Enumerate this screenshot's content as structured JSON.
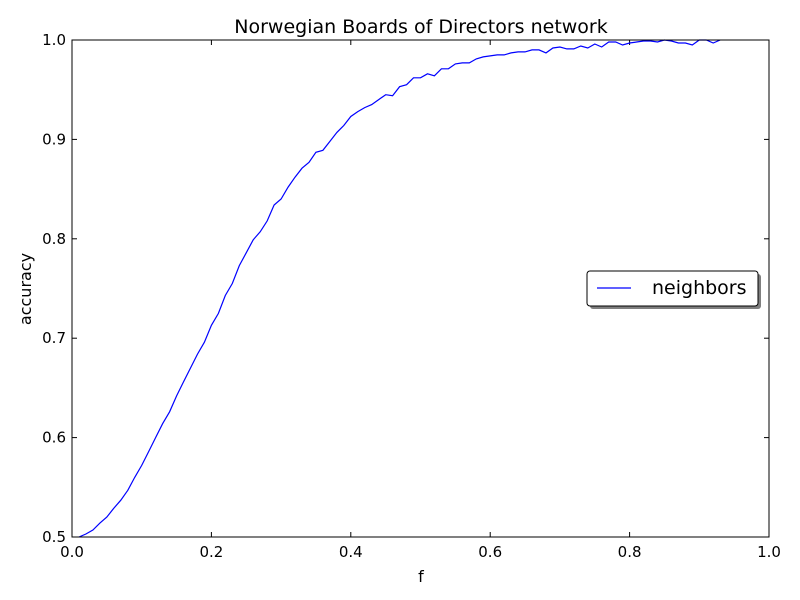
{
  "chart_data": {
    "type": "line",
    "title": "Norwegian Boards of Directors network",
    "xlabel": "f",
    "ylabel": "accuracy",
    "xlim": [
      0.0,
      1.0
    ],
    "ylim": [
      0.5,
      1.0
    ],
    "xticks": [
      "0.0",
      "0.2",
      "0.4",
      "0.6",
      "0.8",
      "1.0"
    ],
    "yticks": [
      "0.5",
      "0.6",
      "0.7",
      "0.8",
      "0.9",
      "1.0"
    ],
    "grid": false,
    "legend_position": "center-right",
    "series": [
      {
        "name": "neighbors",
        "color": "#0000ff",
        "x": [
          0.01,
          0.02,
          0.03,
          0.04,
          0.05,
          0.06,
          0.07,
          0.08,
          0.09,
          0.1,
          0.11,
          0.12,
          0.13,
          0.14,
          0.15,
          0.16,
          0.17,
          0.18,
          0.19,
          0.2,
          0.21,
          0.22,
          0.23,
          0.24,
          0.25,
          0.26,
          0.27,
          0.28,
          0.29,
          0.3,
          0.31,
          0.32,
          0.33,
          0.34,
          0.35,
          0.36,
          0.37,
          0.38,
          0.39,
          0.4,
          0.41,
          0.42,
          0.43,
          0.44,
          0.45,
          0.46,
          0.47,
          0.48,
          0.49,
          0.5,
          0.51,
          0.52,
          0.53,
          0.54,
          0.55,
          0.56,
          0.57,
          0.58,
          0.59,
          0.6,
          0.61,
          0.62,
          0.63,
          0.64,
          0.65,
          0.66,
          0.67,
          0.68,
          0.69,
          0.7,
          0.71,
          0.72,
          0.73,
          0.74,
          0.75,
          0.76,
          0.77,
          0.78,
          0.79,
          0.8,
          0.81,
          0.82,
          0.83,
          0.84,
          0.85,
          0.86,
          0.87,
          0.88,
          0.89,
          0.9,
          0.91,
          0.92,
          0.93
        ],
        "values": [
          0.5,
          0.503,
          0.507,
          0.514,
          0.52,
          0.529,
          0.537,
          0.547,
          0.56,
          0.572,
          0.586,
          0.6,
          0.614,
          0.626,
          0.642,
          0.656,
          0.67,
          0.684,
          0.696,
          0.713,
          0.725,
          0.743,
          0.755,
          0.773,
          0.786,
          0.799,
          0.807,
          0.818,
          0.834,
          0.84,
          0.852,
          0.862,
          0.871,
          0.877,
          0.887,
          0.889,
          0.898,
          0.907,
          0.914,
          0.923,
          0.928,
          0.932,
          0.935,
          0.94,
          0.945,
          0.944,
          0.953,
          0.955,
          0.962,
          0.962,
          0.966,
          0.964,
          0.971,
          0.971,
          0.976,
          0.977,
          0.977,
          0.981,
          0.983,
          0.984,
          0.985,
          0.985,
          0.987,
          0.988,
          0.988,
          0.99,
          0.99,
          0.987,
          0.992,
          0.993,
          0.991,
          0.991,
          0.994,
          0.992,
          0.996,
          0.993,
          0.998,
          0.998,
          0.995,
          0.997,
          0.998,
          0.999,
          0.999,
          0.998,
          1.0,
          0.999,
          0.997,
          0.997,
          0.995,
          1.0,
          1.0,
          0.997,
          1.0
        ]
      }
    ]
  }
}
